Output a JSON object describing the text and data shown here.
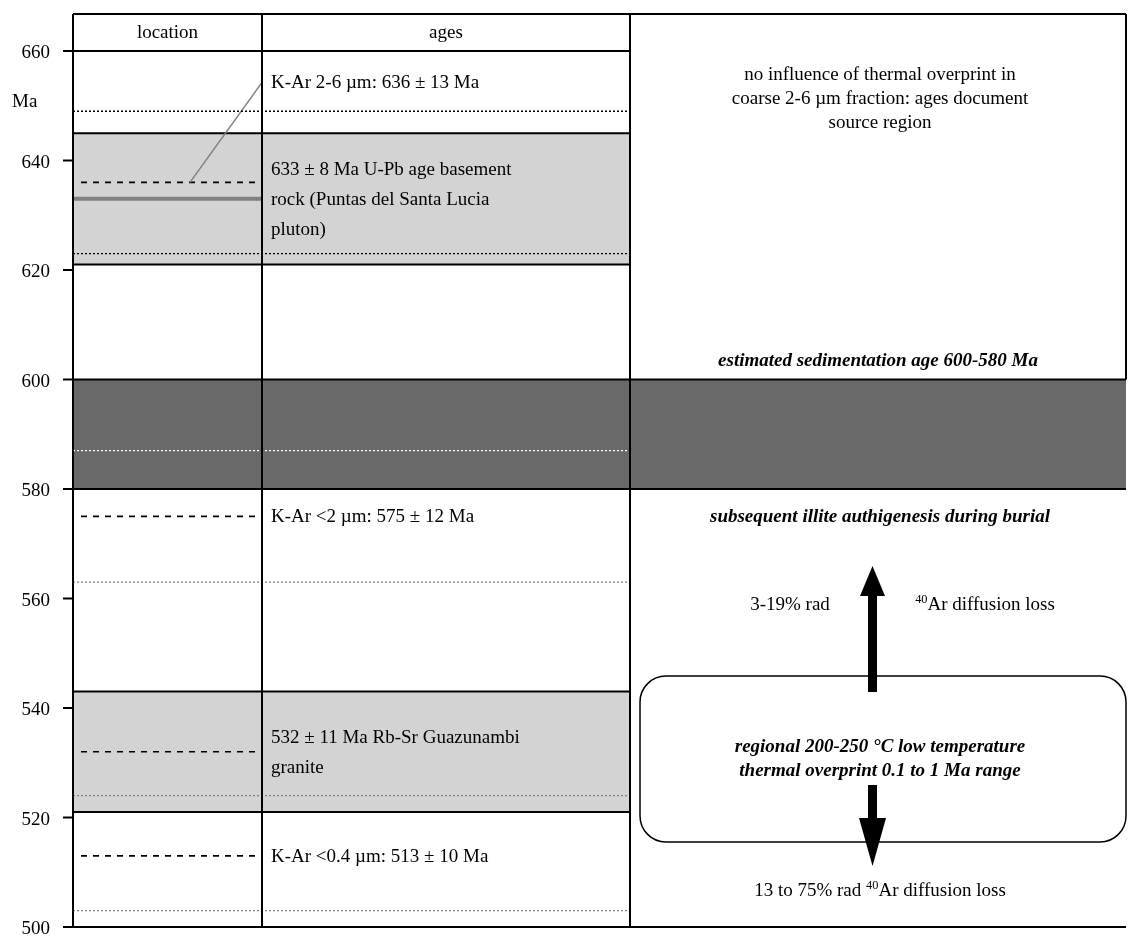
{
  "chart_data": {
    "type": "bar",
    "categories": [
      "location",
      "ages"
    ],
    "ylabel": "Ma",
    "ylim": [
      500,
      660
    ],
    "yticks": [
      500,
      520,
      540,
      560,
      580,
      600,
      620,
      640,
      660
    ],
    "bands": [
      {
        "axis": "y",
        "from": 621,
        "to": 645,
        "color": "#d3d3d3"
      },
      {
        "axis": "y",
        "from": 580,
        "to": 600,
        "color": "#696969",
        "label": "estimated sedimentation age 600-580 Ma"
      },
      {
        "axis": "y",
        "from": 521,
        "to": 543,
        "color": "#d3d3d3"
      }
    ],
    "ref_lines": [
      {
        "axis": "y",
        "value": 636,
        "label": "K-Ar 2-6 µm: 636 ± 13 Ma",
        "line_style": "dashed",
        "color": "#000000"
      },
      {
        "axis": "y",
        "value": 633,
        "label": "633 ± 8 Ma U-Pb age basement rock (Puntas del Santa Lucia pluton)",
        "line_style": "solid",
        "color": "#808080"
      },
      {
        "axis": "y",
        "value": 649,
        "line_style": "dotted",
        "color": "#000000"
      },
      {
        "axis": "y",
        "value": 623,
        "line_style": "dotted",
        "color": "#000000"
      },
      {
        "axis": "y",
        "value": 587,
        "line_style": "dotted",
        "color": "#ffffff"
      },
      {
        "axis": "y",
        "value": 575,
        "label": "K-Ar <2 µm: 575 ± 12 Ma",
        "line_style": "dashed",
        "color": "#000000"
      },
      {
        "axis": "y",
        "value": 563,
        "line_style": "dotted",
        "color": "#808080"
      },
      {
        "axis": "y",
        "value": 532,
        "label": "532 ± 11 Ma Rb-Sr Guazunambi granite",
        "line_style": "dashed",
        "color": "#000000"
      },
      {
        "axis": "y",
        "value": 524,
        "line_style": "dotted",
        "color": "#808080"
      },
      {
        "axis": "y",
        "value": 513,
        "label": "K-Ar <0.4 µm: 513 ± 10 Ma",
        "line_style": "dashed",
        "color": "#000000"
      },
      {
        "axis": "y",
        "value": 503,
        "line_style": "dotted",
        "color": "#808080"
      }
    ],
    "annotations": [
      "no influence of thermal overprint in coarse 2-6 µm fraction: ages document source region",
      "subsequent illite authigenesis during burial",
      "3-19% rad",
      "$^{40}$Ar diffusion loss",
      "regional 200-250 °C low temperature thermal overprint 0.1 to 1 Ma range",
      "13 to 75% rad $^{40}$Ar diffusion loss"
    ]
  }
}
